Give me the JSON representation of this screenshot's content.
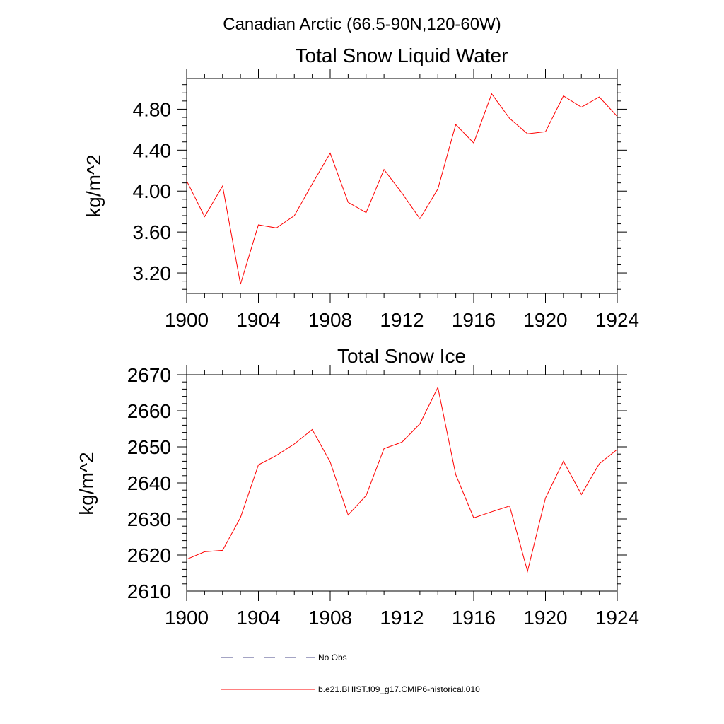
{
  "suptitle": "Canadian Arctic (66.5-90N,120-60W)",
  "colors": {
    "model": "#ff0000",
    "obs": "#4a4a8a",
    "axis": "#000000"
  },
  "legend": {
    "entries": [
      {
        "label": "No Obs",
        "style": "dashed",
        "color": "#4a4a8a"
      },
      {
        "label": "b.e21.BHIST.f09_g17.CMIP6-historical.010",
        "style": "solid",
        "color": "#ff0000"
      }
    ]
  },
  "chart_data": [
    {
      "type": "line",
      "title": "Total Snow Liquid Water",
      "xlabel": "",
      "ylabel": "kg/m^2",
      "xlim": [
        1900,
        1924
      ],
      "ylim": [
        3.0,
        5.1
      ],
      "xticks": [
        1900,
        1904,
        1908,
        1912,
        1916,
        1920,
        1924
      ],
      "xtick_labels": [
        "1900",
        "1904",
        "1908",
        "1912",
        "1916",
        "1920",
        "1924"
      ],
      "yticks": [
        3.2,
        3.6,
        4.0,
        4.4,
        4.8
      ],
      "ytick_labels": [
        "3.20",
        "3.60",
        "4.00",
        "4.40",
        "4.80"
      ],
      "grid": false,
      "x": [
        1900,
        1901,
        1902,
        1903,
        1904,
        1905,
        1906,
        1907,
        1908,
        1909,
        1910,
        1911,
        1912,
        1913,
        1914,
        1915,
        1916,
        1917,
        1918,
        1919,
        1920,
        1921,
        1922,
        1923,
        1924
      ],
      "series": [
        {
          "name": "b.e21.BHIST.f09_g17.CMIP6-historical.010",
          "values": [
            4.1,
            3.75,
            4.05,
            3.09,
            3.67,
            3.64,
            3.76,
            4.07,
            4.37,
            3.89,
            3.79,
            4.21,
            3.98,
            3.73,
            4.02,
            4.65,
            4.47,
            4.95,
            4.71,
            4.56,
            4.58,
            4.93,
            4.82,
            4.92,
            4.73
          ]
        }
      ]
    },
    {
      "type": "line",
      "title": "Total Snow Ice",
      "xlabel": "",
      "ylabel": "kg/m^2",
      "xlim": [
        1900,
        1924
      ],
      "ylim": [
        2610,
        2670
      ],
      "xticks": [
        1900,
        1904,
        1908,
        1912,
        1916,
        1920,
        1924
      ],
      "xtick_labels": [
        "1900",
        "1904",
        "1908",
        "1912",
        "1916",
        "1920",
        "1924"
      ],
      "yticks": [
        2610,
        2620,
        2630,
        2640,
        2650,
        2660,
        2670
      ],
      "ytick_labels": [
        "2610",
        "2620",
        "2630",
        "2640",
        "2650",
        "2660",
        "2670"
      ],
      "grid": false,
      "x": [
        1900,
        1901,
        1902,
        1903,
        1904,
        1905,
        1906,
        1907,
        1908,
        1909,
        1910,
        1911,
        1912,
        1913,
        1914,
        1915,
        1916,
        1917,
        1918,
        1919,
        1920,
        1921,
        1922,
        1923,
        1924
      ],
      "series": [
        {
          "name": "b.e21.BHIST.f09_g17.CMIP6-historical.010",
          "values": [
            2618.8,
            2620.9,
            2621.3,
            2630.4,
            2645.0,
            2647.6,
            2650.8,
            2654.8,
            2645.8,
            2631.1,
            2636.5,
            2649.5,
            2651.3,
            2656.4,
            2666.5,
            2642.3,
            2630.3,
            2632.0,
            2633.6,
            2615.5,
            2635.8,
            2646.0,
            2636.8,
            2645.3,
            2649.3
          ]
        }
      ]
    }
  ]
}
